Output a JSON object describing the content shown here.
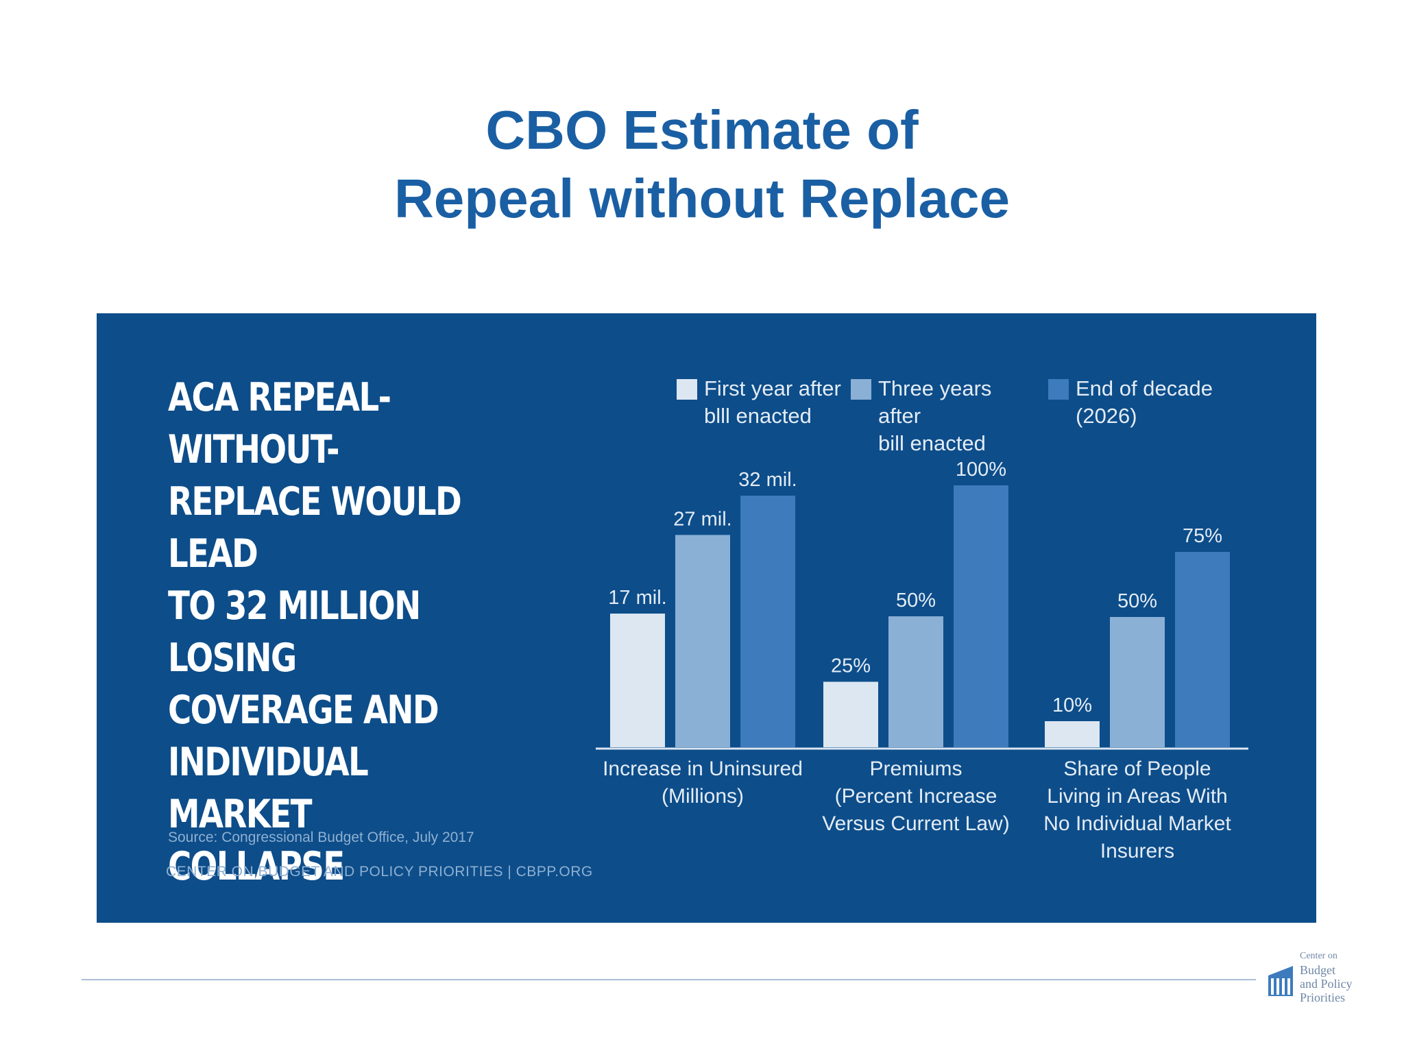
{
  "slide": {
    "title_line1": "CBO Estimate of",
    "title_line2": "Repeal without Replace"
  },
  "panel": {
    "headline_lines": [
      "ACA REPEAL-WITHOUT-",
      "REPLACE WOULD LEAD",
      "TO 32 MILLION LOSING",
      "COVERAGE AND",
      "INDIVIDUAL MARKET",
      "COLLAPSE"
    ],
    "source": "Source: Congressional Budget Office, July 2017",
    "org": "CENTER ON BUDGET AND POLICY PRIORITIES | CBPP.ORG"
  },
  "logo": {
    "lines": [
      "Center on",
      "Budget",
      "and Policy",
      "Priorities"
    ]
  },
  "colors": {
    "slide_title": "#1a5fa3",
    "panel_bg": "#0d4d8a",
    "series": [
      "#dce7f2",
      "#8bb0d6",
      "#3d7bbd"
    ],
    "axis": "#dce7f2"
  },
  "chart_data": {
    "type": "bar",
    "categories": [
      [
        "Increase in Uninsured",
        "(Millions)"
      ],
      [
        "Premiums",
        "(Percent Increase",
        "Versus Current Law)"
      ],
      [
        "Share of People",
        "Living in Areas With",
        "No Individual Market",
        "Insurers"
      ]
    ],
    "series": [
      {
        "name": "First year after bill enacted",
        "legend_lines": [
          "First year after",
          "blll enacted"
        ],
        "values": [
          17,
          25,
          10
        ],
        "labels": [
          "17 mil.",
          "25%",
          "10%"
        ]
      },
      {
        "name": "Three years after bill enacted",
        "legend_lines": [
          "Three years after",
          "bill enacted"
        ],
        "values": [
          27,
          50,
          50
        ],
        "labels": [
          "27 mil.",
          "50%",
          "50%"
        ]
      },
      {
        "name": "End of decade (2026)",
        "legend_lines": [
          "End of decade",
          "(2026)"
        ],
        "values": [
          32,
          100,
          75
        ],
        "labels": [
          "32 mil.",
          "100%",
          "75%"
        ]
      }
    ],
    "units": [
      "millions",
      "percent",
      "percent"
    ],
    "legend_position": "top",
    "grid": false
  }
}
